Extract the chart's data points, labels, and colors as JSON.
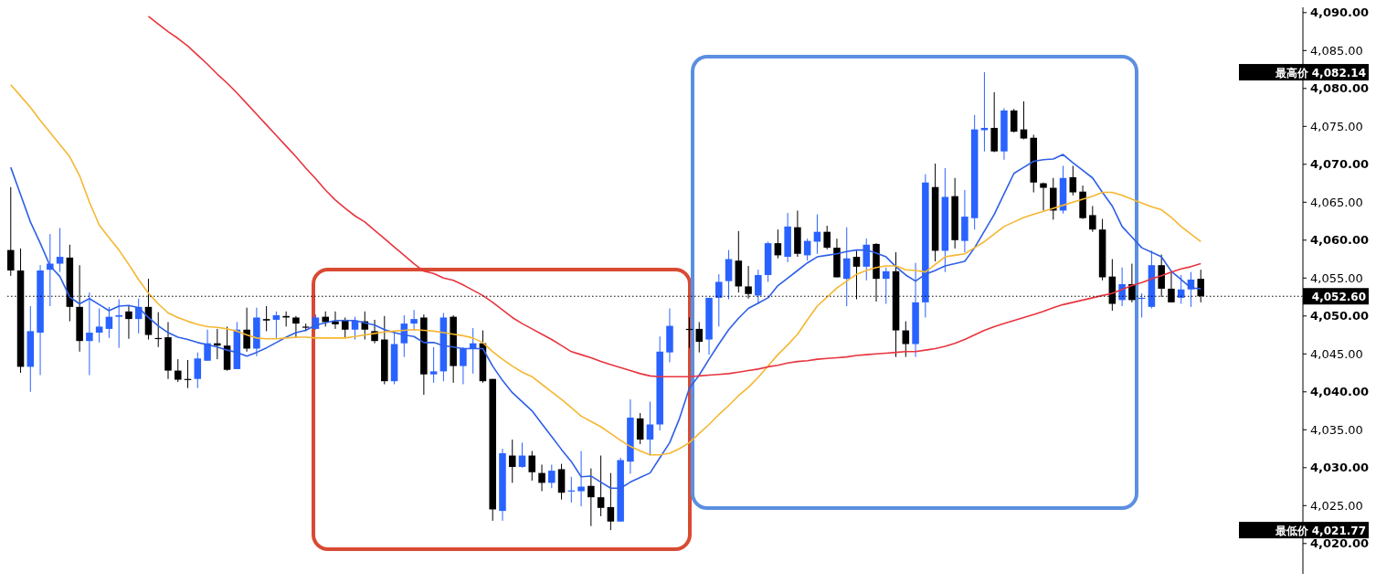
{
  "chart_data": {
    "type": "candlestick",
    "categories": [
      null,
      null,
      null,
      null,
      null,
      null,
      null,
      null,
      null,
      null,
      null,
      null,
      null,
      null,
      null,
      null,
      null,
      null,
      null,
      null,
      null,
      null,
      null,
      null,
      null,
      null,
      null,
      null,
      null,
      null,
      null,
      null,
      null,
      null,
      null,
      null,
      null,
      null,
      null,
      null,
      null,
      null,
      null,
      null,
      null,
      null,
      null,
      null,
      null,
      null,
      null,
      null,
      null,
      null,
      null,
      null,
      null,
      null,
      null,
      null,
      null,
      null,
      null,
      null,
      null,
      null,
      null,
      null,
      null,
      null,
      null,
      null,
      null,
      null,
      null,
      null,
      null,
      null,
      null,
      null,
      null,
      null,
      null,
      null,
      null,
      null,
      null,
      null,
      null,
      null,
      null,
      null,
      null,
      null,
      null,
      null,
      null,
      null,
      null,
      null,
      null,
      null,
      null,
      null,
      null,
      null,
      null,
      null,
      null,
      null,
      null,
      null,
      null,
      null,
      null,
      null,
      null,
      null,
      null,
      null,
      null,
      null
    ],
    "ohlc": [
      [
        4058.7,
        4067,
        4055.3,
        4056
      ],
      [
        4056,
        4058.9,
        4042.5,
        4043.3
      ],
      [
        4043.3,
        4051.3,
        4040,
        4048
      ],
      [
        4047.8,
        4056.7,
        4042.2,
        4056
      ],
      [
        4056.1,
        4060.8,
        4051.3,
        4056.9
      ],
      [
        4056.9,
        4061.6,
        4055.8,
        4057.8
      ],
      [
        4057.7,
        4059.4,
        4049.3,
        4051.2
      ],
      [
        4051.2,
        4056.7,
        4045.3,
        4046.7
      ],
      [
        4046.7,
        4053.1,
        4042.2,
        4047.8
      ],
      [
        4047.8,
        4051,
        4046.5,
        4048.6
      ],
      [
        4048.3,
        4051.2,
        4047.1,
        4049.9
      ],
      [
        4049.9,
        4052.2,
        4045.8,
        4050.1
      ],
      [
        4050.6,
        4051.3,
        4047,
        4049.6
      ],
      [
        4049.6,
        4052.3,
        4047.7,
        4051.2
      ],
      [
        4051.2,
        4054.9,
        4046.9,
        4047.5
      ],
      [
        4047.1,
        4050.5,
        4045.9,
        4047.1
      ],
      [
        4047.2,
        4049.2,
        4041.7,
        4042.8
      ],
      [
        4042.8,
        4044.3,
        4041.3,
        4041.6
      ],
      [
        4041.7,
        4044.2,
        4040.5,
        4041.7
      ],
      [
        4041.7,
        4045.2,
        4040.5,
        4044.4
      ],
      [
        4044.1,
        4048.2,
        4044.1,
        4046.4
      ],
      [
        4046.4,
        4048.3,
        4044.3,
        4046.1
      ],
      [
        4046.1,
        4048.6,
        4042.8,
        4042.9
      ],
      [
        4043,
        4049.2,
        4043,
        4048.2
      ],
      [
        4048.2,
        4051.1,
        4045.3,
        4045.7
      ],
      [
        4045.7,
        4051.1,
        4044.7,
        4049.8
      ],
      [
        4049.6,
        4051.3,
        4048,
        4049.4
      ],
      [
        4049.5,
        4050.6,
        4047.1,
        4050.1
      ],
      [
        4050,
        4050.6,
        4048.6,
        4049.8
      ],
      [
        4049.8,
        4050,
        4047.1,
        4049
      ],
      [
        4048.6,
        4049,
        4048,
        4048.6
      ],
      [
        4048.3,
        4050.2,
        4048.2,
        4049.8
      ],
      [
        4049.9,
        4050.6,
        4048.6,
        4049.2
      ],
      [
        4049.3,
        4050.6,
        4048.3,
        4048.9
      ],
      [
        4049.5,
        4049.8,
        4047.1,
        4048.2
      ],
      [
        4048.2,
        4049.9,
        4046.9,
        4049.4
      ],
      [
        4049.3,
        4050.6,
        4046.9,
        4048.2
      ],
      [
        4048,
        4049.5,
        4046.4,
        4046.7
      ],
      [
        4046.9,
        4050,
        4041,
        4041.4
      ],
      [
        4041.4,
        4048,
        4041,
        4046.3
      ],
      [
        4046.4,
        4050.1,
        4044.6,
        4049
      ],
      [
        4049,
        4050.8,
        4048.1,
        4049.6
      ],
      [
        4049.8,
        4050.2,
        4039.6,
        4042.3
      ],
      [
        4042.3,
        4045.9,
        4041.2,
        4042.7
      ],
      [
        4042.7,
        4050.4,
        4041.4,
        4049.8
      ],
      [
        4049.9,
        4050.1,
        4041.2,
        4043.4
      ],
      [
        4043.4,
        4045.9,
        4041,
        4045.7
      ],
      [
        4045.7,
        4048.4,
        4042.4,
        4046.4
      ],
      [
        4046.4,
        4048.1,
        4041.2,
        4041.4
      ],
      [
        4041.7,
        4041.7,
        4023,
        4024.5
      ],
      [
        4024.3,
        4032.5,
        4023,
        4031.9
      ],
      [
        4031.6,
        4033.7,
        4028,
        4030.1
      ],
      [
        4030.1,
        4033.3,
        4030,
        4031.6
      ],
      [
        4031.6,
        4032.2,
        4028.3,
        4029.4
      ],
      [
        4029.3,
        4030.4,
        4026.9,
        4028
      ],
      [
        4028,
        4030.4,
        4027.3,
        4029.6
      ],
      [
        4029.8,
        4030.5,
        4025.8,
        4026.7
      ],
      [
        4027,
        4028.8,
        4025.4,
        4027
      ],
      [
        4026.9,
        4032.2,
        4024.9,
        4027.5
      ],
      [
        4027.6,
        4029.9,
        4022.3,
        4026.1
      ],
      [
        4026.1,
        4031.6,
        4023.6,
        4024.7
      ],
      [
        4024.8,
        4029.3,
        4021.77,
        4022.9
      ],
      [
        4022.9,
        4031.3,
        4022.9,
        4031
      ],
      [
        4030.8,
        4039,
        4029.2,
        4036.6
      ],
      [
        4036.5,
        4037.2,
        4033.1,
        4033.7
      ],
      [
        4033.7,
        4038.7,
        4031.6,
        4035.7
      ],
      [
        4035.7,
        4047.3,
        4034.9,
        4045.3
      ],
      [
        4045.2,
        4051,
        4043.9,
        4048.7
      ],
      null,
      [
        4048.3,
        4049.8,
        4045.8,
        4048.3
      ],
      [
        4048.3,
        4049.2,
        4045.2,
        4046.6
      ],
      [
        4046.9,
        4052.4,
        4044.9,
        4052.4
      ],
      [
        4052.4,
        4055.5,
        4048.6,
        4054.5
      ],
      [
        4054.6,
        4058.7,
        4052.2,
        4057.5
      ],
      [
        4057.3,
        4061.2,
        4053.1,
        4053.9
      ],
      [
        4053.9,
        4056.6,
        4052.3,
        4052.9
      ],
      [
        4052.7,
        4056.1,
        4051.6,
        4055.4
      ],
      [
        4055.4,
        4059.8,
        4054.5,
        4059.6
      ],
      [
        4059.6,
        4061.4,
        4057.6,
        4058
      ],
      [
        4057.8,
        4063.6,
        4057.1,
        4061.8
      ],
      [
        4061.7,
        4063.9,
        4057.8,
        4058.2
      ],
      [
        4058,
        4060.2,
        4057.3,
        4059.9
      ],
      [
        4059.8,
        4063.4,
        4058.2,
        4061.1
      ],
      [
        4061.1,
        4061.9,
        4058.8,
        4059
      ],
      [
        4059,
        4060.2,
        4055.1,
        4055.1
      ],
      [
        4054.9,
        4061.7,
        4051.3,
        4057.6
      ],
      [
        4057.8,
        4058.6,
        4052.2,
        4056.5
      ],
      [
        4056.5,
        4060.2,
        4054.7,
        4059.4
      ],
      [
        4059.5,
        4059.6,
        4051.9,
        4054.9
      ],
      [
        4054.9,
        4056.4,
        4051.6,
        4055.9
      ],
      [
        4055.9,
        4058.4,
        4044.6,
        4048.1
      ],
      [
        4048.1,
        4049.3,
        4044.6,
        4046.3
      ],
      [
        4046.3,
        4057,
        4044.6,
        4051.8
      ],
      [
        4051.8,
        4068.7,
        4049.8,
        4067.6
      ],
      [
        4067,
        4070.1,
        4057.2,
        4058.6
      ],
      [
        4058.6,
        4069.5,
        4055.8,
        4065.7
      ],
      [
        4065.8,
        4068.2,
        4058.9,
        4060
      ],
      [
        4059.9,
        4066.6,
        4058.4,
        4063.1
      ],
      [
        4062.9,
        4076.5,
        4061.4,
        4074.6
      ],
      [
        4074.5,
        4082.14,
        4071.7,
        4074.8
      ],
      [
        4074.8,
        4079.5,
        4071.6,
        4071.7
      ],
      [
        4071.7,
        4077.4,
        4070.6,
        4077.1
      ],
      [
        4077.1,
        4077.3,
        4074.2,
        4074.3
      ],
      [
        4074.6,
        4078.3,
        4073.3,
        4073.4
      ],
      [
        4073.5,
        4073.9,
        4066.3,
        4067.6
      ],
      [
        4067.5,
        4067.6,
        4063.9,
        4066.9
      ],
      [
        4066.9,
        4068.2,
        4062.7,
        4063.9
      ],
      [
        4063.9,
        4069.8,
        4063.5,
        4068.2
      ],
      [
        4068.3,
        4069.8,
        4065.9,
        4066.3
      ],
      [
        4066.4,
        4067.2,
        4062.8,
        4062.9
      ],
      [
        4063.3,
        4064.5,
        4061.1,
        4061.4
      ],
      [
        4061.4,
        4062.8,
        4054.7,
        4055.1
      ],
      [
        4055.2,
        4057.5,
        4050.7,
        4051.6
      ],
      [
        4052.1,
        4056.4,
        4051.3,
        4054.2
      ],
      [
        4054.2,
        4056.9,
        4051.8,
        4052.1
      ],
      [
        4052.3,
        4053,
        4049.8,
        4052.4
      ],
      [
        4051.2,
        4058.6,
        4051,
        4056.7
      ],
      [
        4056.7,
        4058.1,
        4052.5,
        4053.6
      ],
      [
        4053.6,
        4055.8,
        4051.8,
        4051.8
      ],
      [
        4052.4,
        4055.4,
        4051.6,
        4053.5
      ],
      [
        4053.5,
        4055.8,
        4051.2,
        4054.8
      ],
      [
        4054.9,
        4056.1,
        4051.8,
        4052.6
      ]
    ],
    "colors": [
      "#000000",
      "#000000",
      "#2962ff",
      "#2962ff",
      "#2962ff",
      "#2962ff",
      "#000000",
      "#000000",
      "#2962ff",
      "#2962ff",
      "#2962ff",
      "#2962ff",
      "#000000",
      "#2962ff",
      "#000000",
      "#000000",
      "#000000",
      "#000000",
      "#000000",
      "#2962ff",
      "#2962ff",
      "#000000",
      "#000000",
      "#2962ff",
      "#000000",
      "#2962ff",
      "#000000",
      "#2962ff",
      "#000000",
      "#000000",
      "#000000",
      "#2962ff",
      "#000000",
      "#000000",
      "#000000",
      "#2962ff",
      "#000000",
      "#000000",
      "#000000",
      "#2962ff",
      "#2962ff",
      "#2962ff",
      "#000000",
      "#2962ff",
      "#2962ff",
      "#000000",
      "#2962ff",
      "#2962ff",
      "#000000",
      "#000000",
      "#2962ff",
      "#000000",
      "#2962ff",
      "#000000",
      "#000000",
      "#2962ff",
      "#000000",
      "#2962ff",
      "#2962ff",
      "#000000",
      "#000000",
      "#000000",
      "#2962ff",
      "#2962ff",
      "#000000",
      "#2962ff",
      "#2962ff",
      "#2962ff",
      null,
      "#000000",
      "#000000",
      "#2962ff",
      "#2962ff",
      "#2962ff",
      "#000000",
      "#000000",
      "#2962ff",
      "#2962ff",
      "#000000",
      "#2962ff",
      "#000000",
      "#2962ff",
      "#2962ff",
      "#000000",
      "#000000",
      "#2962ff",
      "#000000",
      "#2962ff",
      "#000000",
      "#2962ff",
      "#000000",
      "#000000",
      "#2962ff",
      "#2962ff",
      "#000000",
      "#2962ff",
      "#000000",
      "#2962ff",
      "#2962ff",
      "#2962ff",
      "#000000",
      "#2962ff",
      "#000000",
      "#000000",
      "#000000",
      "#000000",
      "#000000",
      "#2962ff",
      "#000000",
      "#000000",
      "#000000",
      "#000000",
      "#000000",
      "#2962ff",
      "#000000",
      "#2962ff",
      "#2962ff",
      "#000000",
      "#000000",
      "#2962ff",
      "#2962ff",
      "#000000"
    ],
    "series": [
      {
        "type": "line",
        "color": "#2e5fe6",
        "values": [
          4069.6,
          4066.0,
          4062.4,
          4059.6,
          4056.6,
          4055.2,
          4052.5,
          4051.6,
          4052.3,
          4051.5,
          4050.7,
          4051.3,
          4051.4,
          4051.1,
          4049.8,
          4048.7,
          4047.8,
          4047.2,
          4046.9,
          4046.5,
          4046.2,
          4045.9,
          4045.5,
          4045.2,
          4044.7,
          4045.2,
          4045.8,
          4046.5,
          4047.2,
          4047.8,
          4048.1,
          4048.8,
          4049.1,
          4049.4,
          4049.4,
          4049.4,
          4049.1,
          4048.8,
          4048.2,
          4047.8,
          4047.5,
          4047.3,
          4046.5,
          4046.5,
          4046.1,
          4045.9,
          4045.7,
          4045.7,
          4045.7,
          4043.4,
          4041.5,
          4039.9,
          4038.7,
          4037.5,
          4035.8,
          4034.1,
          4032.4,
          4030.8,
          4028.8,
          4028.9,
          4028.1,
          4027.3,
          4027.3,
          4028.1,
          4028.7,
          4029.3,
          4031.3,
          4033.3,
          4036.5,
          4040.5,
          4042.2,
          4044.3,
          4046.3,
          4048.2,
          4049.7,
          4051.0,
          4051.7,
          4052.4,
          4054.0,
          4055.0,
          4056.0,
          4057.0,
          4057.8,
          4058.0,
          4058.2,
          4058.5,
          4058.7,
          4058.7,
          4058.3,
          4057.8,
          4056.5,
          4055.4,
          4054.6,
          4055.5,
          4056.0,
          4056.6,
          4056.9,
          4057.2,
          4059.0,
          4061.2,
          4063.4,
          4066.1,
          4068.8,
          4069.6,
          4070.4,
          4070.6,
          4070.7,
          4071.3,
          4070.2,
          4069.2,
          4068.2,
          4066.3,
          4064.5,
          4061.8,
          4060.4,
          4059.0,
          4058.4,
          4057.8,
          4055.9,
          4054.8,
          4053.7,
          4053.6
        ]
      },
      {
        "type": "line",
        "color": "#f5b731",
        "values": [
          4080.5,
          4079.0,
          4077.5,
          4075.8,
          4074.2,
          4072.6,
          4071.0,
          4068.5,
          4065.0,
          4062.0,
          4060.3,
          4058.7,
          4056.8,
          4054.8,
          4053.0,
          4051.6,
          4050.4,
          4049.8,
          4049.3,
          4048.9,
          4048.6,
          4048.5,
          4048.3,
          4048.0,
          4047.5,
          4047.1,
          4047.0,
          4047.0,
          4047.1,
          4047.2,
          4047.2,
          4047.1,
          4047.1,
          4047.1,
          4047.1,
          4047.3,
          4047.5,
          4047.7,
          4047.9,
          4048.0,
          4048.1,
          4048.2,
          4048.1,
          4048.0,
          4047.8,
          4047.6,
          4047.4,
          4047.1,
          4046.5,
          4045.3,
          4044.3,
          4043.4,
          4042.6,
          4042.0,
          4041.0,
          4040.0,
          4039.0,
          4037.9,
          4036.8,
          4036.1,
          4035.4,
          4034.5,
          4033.6,
          4032.8,
          4032.2,
          4031.7,
          4031.7,
          4031.9,
          4032.5,
          4033.3,
          4034.5,
          4035.7,
          4037.0,
          4038.2,
          4039.5,
          4040.6,
          4041.9,
          4043.4,
          4044.9,
          4046.2,
          4047.6,
          4049.5,
          4051.3,
          4052.5,
          4053.7,
          4054.6,
          4055.5,
          4056.0,
          4056.4,
          4056.6,
          4056.6,
          4056.1,
          4056.0,
          4055.8,
          4056.8,
          4057.8,
          4058.0,
          4058.2,
          4059.0,
          4059.8,
          4060.8,
          4061.8,
          4062.4,
          4063.0,
          4063.4,
          4063.8,
          4064.2,
          4064.6,
          4065.0,
          4065.4,
          4065.8,
          4066.3,
          4066.3,
          4065.9,
          4065.4,
          4064.9,
          4064.4,
          4064.0,
          4063.0,
          4061.8,
          4060.8,
          4059.8
        ]
      },
      {
        "type": "line",
        "color": "#e8343f",
        "values": [
          null,
          null,
          null,
          null,
          null,
          null,
          null,
          null,
          null,
          null,
          null,
          null,
          null,
          null,
          4089.5,
          4088.5,
          4087.5,
          4086.6,
          4085.6,
          4084.4,
          4083.2,
          4081.9,
          4080.7,
          4079.4,
          4078.0,
          4076.6,
          4075.2,
          4073.8,
          4072.4,
          4071.0,
          4069.5,
          4068.1,
          4066.6,
          4065.3,
          4064.2,
          4063.2,
          4062.4,
          4061.3,
          4060.2,
          4059.1,
          4058.0,
          4056.9,
          4055.9,
          4055.6,
          4055.0,
          4054.7,
          4054.1,
          4053.4,
          4052.7,
          4051.8,
          4050.8,
          4049.8,
          4049.0,
          4048.3,
          4047.6,
          4046.9,
          4046.1,
          4045.3,
          4044.9,
          4044.5,
          4044.0,
          4043.6,
          4043.2,
          4042.8,
          4042.4,
          4042.1,
          4042.0,
          4042.0,
          4042.0,
          4042.0,
          4042.1,
          4042.2,
          4042.3,
          4042.4,
          4042.6,
          4042.8,
          4043.0,
          4043.3,
          4043.5,
          4043.8,
          4044.0,
          4044.1,
          4044.3,
          4044.4,
          4044.5,
          4044.6,
          4044.8,
          4044.9,
          4045.0,
          4045.1,
          4045.2,
          4045.3,
          4045.3,
          4045.5,
          4045.7,
          4046.0,
          4046.4,
          4046.9,
          4047.5,
          4048.1,
          4048.6,
          4049.0,
          4049.4,
          4049.8,
          4050.2,
          4050.6,
          4051.1,
          4051.5,
          4051.8,
          4052.1,
          4052.4,
          4052.7,
          4053.0,
          4053.5,
          4054.0,
          4054.4,
          4054.9,
          4055.3,
          4055.8,
          4056.2,
          4056.5,
          4056.9
        ]
      }
    ],
    "ylim": [
      4016,
      4090.7
    ],
    "yticks": [
      {
        "value": 4020,
        "label": "4,020.00"
      },
      {
        "value": 4025,
        "label": "4,025.00"
      },
      {
        "value": 4030,
        "label": "4,030.00"
      },
      {
        "value": 4035,
        "label": "4,035.00"
      },
      {
        "value": 4040,
        "label": "4,040.00"
      },
      {
        "value": 4045,
        "label": "4,045.00"
      },
      {
        "value": 4050,
        "label": "4,050.00"
      },
      {
        "value": 4055,
        "label": "4,055.00"
      },
      {
        "value": 4060,
        "label": "4,060.00"
      },
      {
        "value": 4065,
        "label": "4,065.00"
      },
      {
        "value": 4070,
        "label": "4,070.00"
      },
      {
        "value": 4075,
        "label": "4,075.00"
      },
      {
        "value": 4080,
        "label": "4,080.00"
      },
      {
        "value": 4085,
        "label": "4,085.00"
      },
      {
        "value": 4090,
        "label": "4,090.00"
      }
    ],
    "tick_labels": "y",
    "ref_lines": [
      {
        "axis": "y",
        "value": 4052.6,
        "label": "4,052.60",
        "color": "#000000",
        "line_style": "dotted"
      }
    ],
    "annotations": [
      "最高价 4,082.14",
      "最低价 4,021.77"
    ]
  }
}
